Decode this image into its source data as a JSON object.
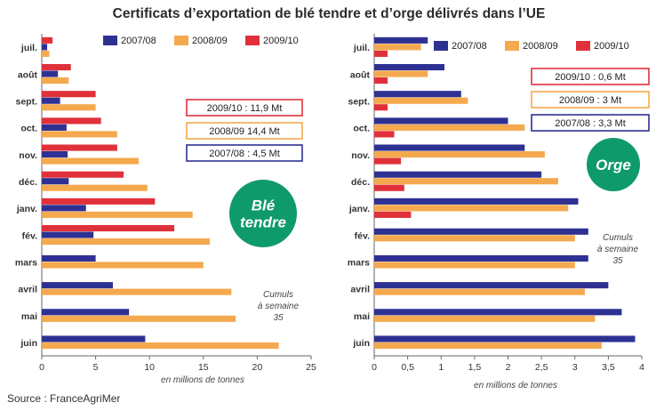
{
  "title": "Certificats d’exportation de blé tendre et d’orge délivrés dans l’UE",
  "source": "Source : FranceAgriMer",
  "colors": {
    "2007/08": "#2e3192",
    "2008/09": "#f4a94e",
    "2009/10": "#e0313b",
    "badge": "#0f9a6b",
    "axis": "#666666"
  },
  "chart_data": [
    {
      "type": "bar",
      "orientation": "horizontal",
      "badge": [
        "Blé",
        "tendre"
      ],
      "note": [
        "Cumuls",
        "à semaine",
        "35"
      ],
      "xlabel": "en millions de tonnes",
      "xlim": [
        0,
        25
      ],
      "xticks": [
        0,
        5,
        10,
        15,
        20,
        25
      ],
      "totals": [
        "2009/10 : 11,9 Mt",
        "2008/09 14,4 Mt",
        "2007/08 : 4,5 Mt"
      ],
      "categories": [
        "juil.",
        "août",
        "sept.",
        "oct.",
        "nov.",
        "déc.",
        "janv.",
        "fév.",
        "mars",
        "avril",
        "mai",
        "juin"
      ],
      "series": [
        {
          "name": "2007/08",
          "values": [
            0.5,
            1.5,
            1.7,
            2.3,
            2.4,
            2.5,
            4.1,
            4.8,
            5.0,
            6.6,
            8.1,
            9.6
          ]
        },
        {
          "name": "2008/09",
          "values": [
            0.7,
            2.5,
            5.0,
            7.0,
            9.0,
            9.8,
            14.0,
            15.6,
            15.0,
            17.6,
            18.0,
            22.0
          ]
        },
        {
          "name": "2009/10",
          "values": [
            1.0,
            2.7,
            5.0,
            5.5,
            7.0,
            7.6,
            10.5,
            12.3,
            null,
            null,
            null,
            null
          ]
        }
      ]
    },
    {
      "type": "bar",
      "orientation": "horizontal",
      "badge": [
        "Orge"
      ],
      "note": [
        "Cumuls",
        "à semaine",
        "35"
      ],
      "xlabel": "en millions de tonnes",
      "xlim": [
        0,
        4
      ],
      "xticks": [
        0,
        0.5,
        1,
        1.5,
        2,
        2.5,
        3,
        3.5,
        4
      ],
      "xticklabels": [
        "0",
        "0,5",
        "1",
        "1,5",
        "2",
        "2,5",
        "3",
        "3,5",
        "4"
      ],
      "totals": [
        "2009/10 : 0,6 Mt",
        "2008/09 : 3 Mt",
        "2007/08 : 3,3 Mt"
      ],
      "categories": [
        "juil.",
        "août",
        "sept.",
        "oct.",
        "nov.",
        "déc.",
        "janv.",
        "fév.",
        "mars",
        "avril",
        "mai",
        "juin"
      ],
      "series": [
        {
          "name": "2007/08",
          "values": [
            0.8,
            1.05,
            1.3,
            2.0,
            2.25,
            2.5,
            3.05,
            3.2,
            3.2,
            3.5,
            3.7,
            3.9
          ]
        },
        {
          "name": "2008/09",
          "values": [
            0.7,
            0.8,
            1.4,
            2.25,
            2.55,
            2.75,
            2.9,
            3.0,
            3.0,
            3.15,
            3.3,
            3.4
          ]
        },
        {
          "name": "2009/10",
          "values": [
            0.2,
            0.2,
            0.2,
            0.3,
            0.4,
            0.45,
            0.55,
            null,
            null,
            null,
            null,
            null
          ]
        }
      ]
    }
  ]
}
